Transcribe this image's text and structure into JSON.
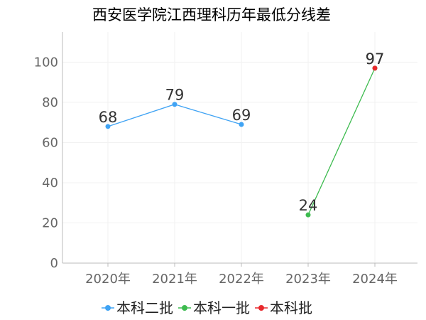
{
  "chart_data": {
    "type": "line",
    "title": "西安医学院江西理科历年最低分线差",
    "categories": [
      "2020年",
      "2021年",
      "2022年",
      "2023年",
      "2024年"
    ],
    "yticks": [
      "0",
      "20",
      "40",
      "60",
      "80",
      "100"
    ],
    "ylim": [
      0,
      115
    ],
    "grid": true,
    "legend_position": "bottom",
    "series": [
      {
        "name": "本科二批",
        "color": "#3fa3f4",
        "points": [
          {
            "x": "2020年",
            "y": 68
          },
          {
            "x": "2021年",
            "y": 79
          },
          {
            "x": "2022年",
            "y": 69
          }
        ]
      },
      {
        "name": "本科一批",
        "color": "#3dbb4f",
        "points": [
          {
            "x": "2023年",
            "y": 24
          },
          {
            "x": "2024年",
            "y": 97
          }
        ]
      },
      {
        "name": "本科批",
        "color": "#e8292d",
        "points": [
          {
            "x": "2024年",
            "y": 97
          }
        ]
      }
    ]
  }
}
